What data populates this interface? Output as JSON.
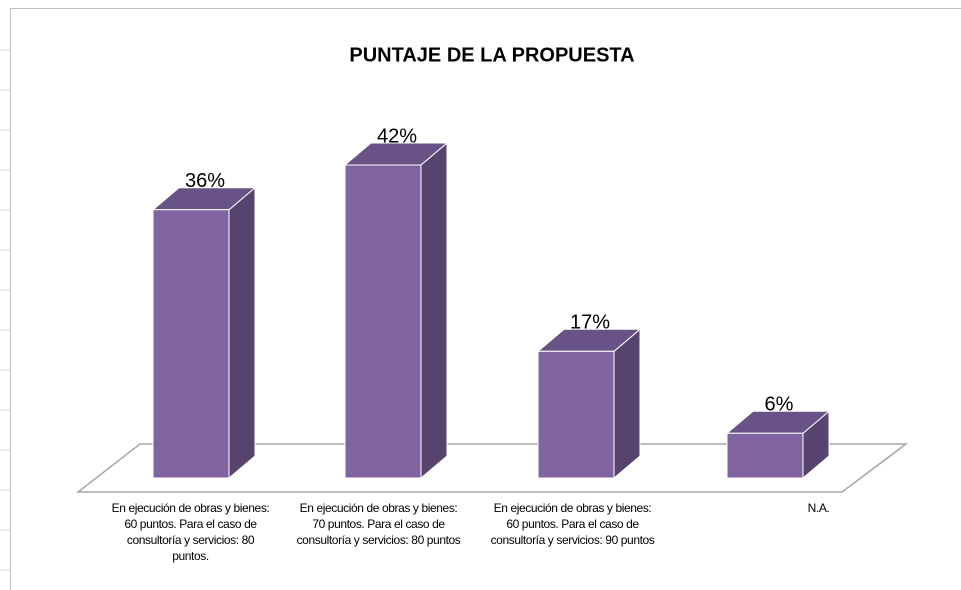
{
  "chart_data": {
    "type": "bar3d",
    "title": "PUNTAJE DE LA PROPUESTA",
    "categories": [
      "En ejecución de obras y bienes: 60 puntos. Para el caso de consultoría y servicios: 80 puntos.",
      "En ejecución de obras y bienes: 70 puntos. Para el caso de consultoría y servicios: 80 puntos",
      "En ejecución de obras y bienes: 60 puntos. Para el caso de consultoría y servicios: 90 puntos",
      "N.A."
    ],
    "values": [
      36,
      42,
      17,
      6
    ],
    "value_labels": [
      "36%",
      "42%",
      "17%",
      "6%"
    ],
    "color": "#8064a2"
  }
}
